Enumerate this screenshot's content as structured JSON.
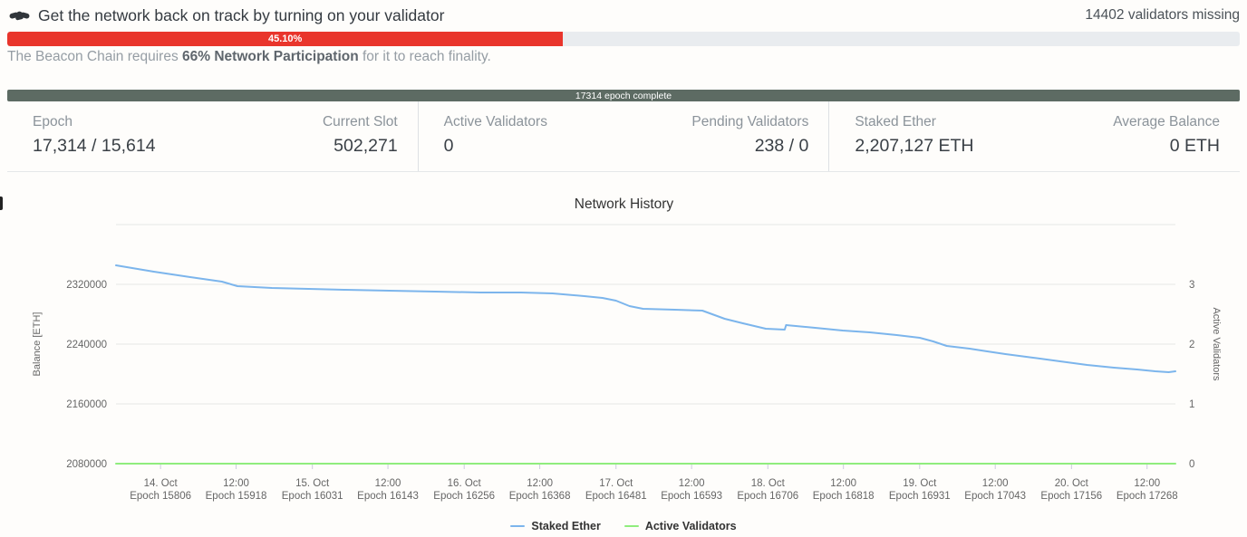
{
  "alert": {
    "icon": "handshake-icon",
    "title": "Get the network back on track by turning on your validator",
    "validators_missing": "14402 validators missing",
    "participation": {
      "percent_label": "45.10%",
      "percent_value": 45.1,
      "note_prefix": "The Beacon Chain requires ",
      "note_bold": "66% Network Participation",
      "note_suffix": " for it to reach finality."
    }
  },
  "epoch_progress": {
    "label": "17314 epoch complete",
    "bar_color": "#5d6b63"
  },
  "stats": [
    {
      "label": "Epoch",
      "value": "17,314 / 15,614"
    },
    {
      "label": "Current Slot",
      "value": "502,271"
    },
    {
      "label": "Active Validators",
      "value": "0"
    },
    {
      "label": "Pending Validators",
      "value": "238 / 0"
    },
    {
      "label": "Staked Ether",
      "value": "2,207,127 ETH"
    },
    {
      "label": "Average Balance",
      "value": "0 ETH"
    }
  ],
  "chart_data": {
    "type": "line",
    "title": "Network History",
    "grid": true,
    "legend_position": "bottom-center",
    "y_left": {
      "label": "Balance [ETH]",
      "min": 2080000,
      "max": 2400000,
      "ticks": [
        2080000,
        2160000,
        2240000,
        2320000
      ]
    },
    "y_right": {
      "label": "Active Validators",
      "min": 0,
      "max": 4,
      "ticks": [
        0,
        1,
        2,
        3
      ]
    },
    "x_axis": {
      "min_epoch": 15740,
      "max_epoch": 17310,
      "ticks": [
        {
          "date": "14. Oct",
          "epoch_label": "Epoch 15806",
          "epoch": 15806
        },
        {
          "date": "12:00",
          "epoch_label": "Epoch 15918",
          "epoch": 15918
        },
        {
          "date": "15. Oct",
          "epoch_label": "Epoch 16031",
          "epoch": 16031
        },
        {
          "date": "12:00",
          "epoch_label": "Epoch 16143",
          "epoch": 16143
        },
        {
          "date": "16. Oct",
          "epoch_label": "Epoch 16256",
          "epoch": 16256
        },
        {
          "date": "12:00",
          "epoch_label": "Epoch 16368",
          "epoch": 16368
        },
        {
          "date": "17. Oct",
          "epoch_label": "Epoch 16481",
          "epoch": 16481
        },
        {
          "date": "12:00",
          "epoch_label": "Epoch 16593",
          "epoch": 16593
        },
        {
          "date": "18. Oct",
          "epoch_label": "Epoch 16706",
          "epoch": 16706
        },
        {
          "date": "12:00",
          "epoch_label": "Epoch 16818",
          "epoch": 16818
        },
        {
          "date": "19. Oct",
          "epoch_label": "Epoch 16931",
          "epoch": 16931
        },
        {
          "date": "12:00",
          "epoch_label": "Epoch 17043",
          "epoch": 17043
        },
        {
          "date": "20. Oct",
          "epoch_label": "Epoch 17156",
          "epoch": 17156
        },
        {
          "date": "12:00",
          "epoch_label": "Epoch 17268",
          "epoch": 17268
        }
      ]
    },
    "series": [
      {
        "name": "Staked Ether",
        "color": "#7cb5ec",
        "axis": "left",
        "points": [
          [
            15740,
            2345500
          ],
          [
            15796,
            2337000
          ],
          [
            15850,
            2329700
          ],
          [
            15897,
            2323600
          ],
          [
            15920,
            2317600
          ],
          [
            15971,
            2315200
          ],
          [
            16025,
            2313900
          ],
          [
            16078,
            2312700
          ],
          [
            16145,
            2311500
          ],
          [
            16213,
            2310300
          ],
          [
            16280,
            2309100
          ],
          [
            16340,
            2309100
          ],
          [
            16387,
            2307900
          ],
          [
            16434,
            2304200
          ],
          [
            16461,
            2301800
          ],
          [
            16481,
            2298200
          ],
          [
            16501,
            2290900
          ],
          [
            16521,
            2287300
          ],
          [
            16568,
            2286100
          ],
          [
            16609,
            2284800
          ],
          [
            16642,
            2273900
          ],
          [
            16669,
            2267900
          ],
          [
            16703,
            2260600
          ],
          [
            16731,
            2259400
          ],
          [
            16733,
            2265500
          ],
          [
            16776,
            2261800
          ],
          [
            16817,
            2258200
          ],
          [
            16857,
            2255800
          ],
          [
            16897,
            2252100
          ],
          [
            16931,
            2248500
          ],
          [
            16951,
            2243600
          ],
          [
            16971,
            2237600
          ],
          [
            17005,
            2233900
          ],
          [
            17031,
            2230300
          ],
          [
            17058,
            2226700
          ],
          [
            17099,
            2221800
          ],
          [
            17139,
            2217000
          ],
          [
            17179,
            2212100
          ],
          [
            17219,
            2208500
          ],
          [
            17253,
            2206100
          ],
          [
            17280,
            2203600
          ],
          [
            17300,
            2202400
          ],
          [
            17310,
            2203600
          ]
        ]
      },
      {
        "name": "Active Validators",
        "color": "#90ed7d",
        "axis": "right",
        "points": [
          [
            15740,
            0
          ],
          [
            17310,
            0
          ]
        ]
      }
    ]
  }
}
